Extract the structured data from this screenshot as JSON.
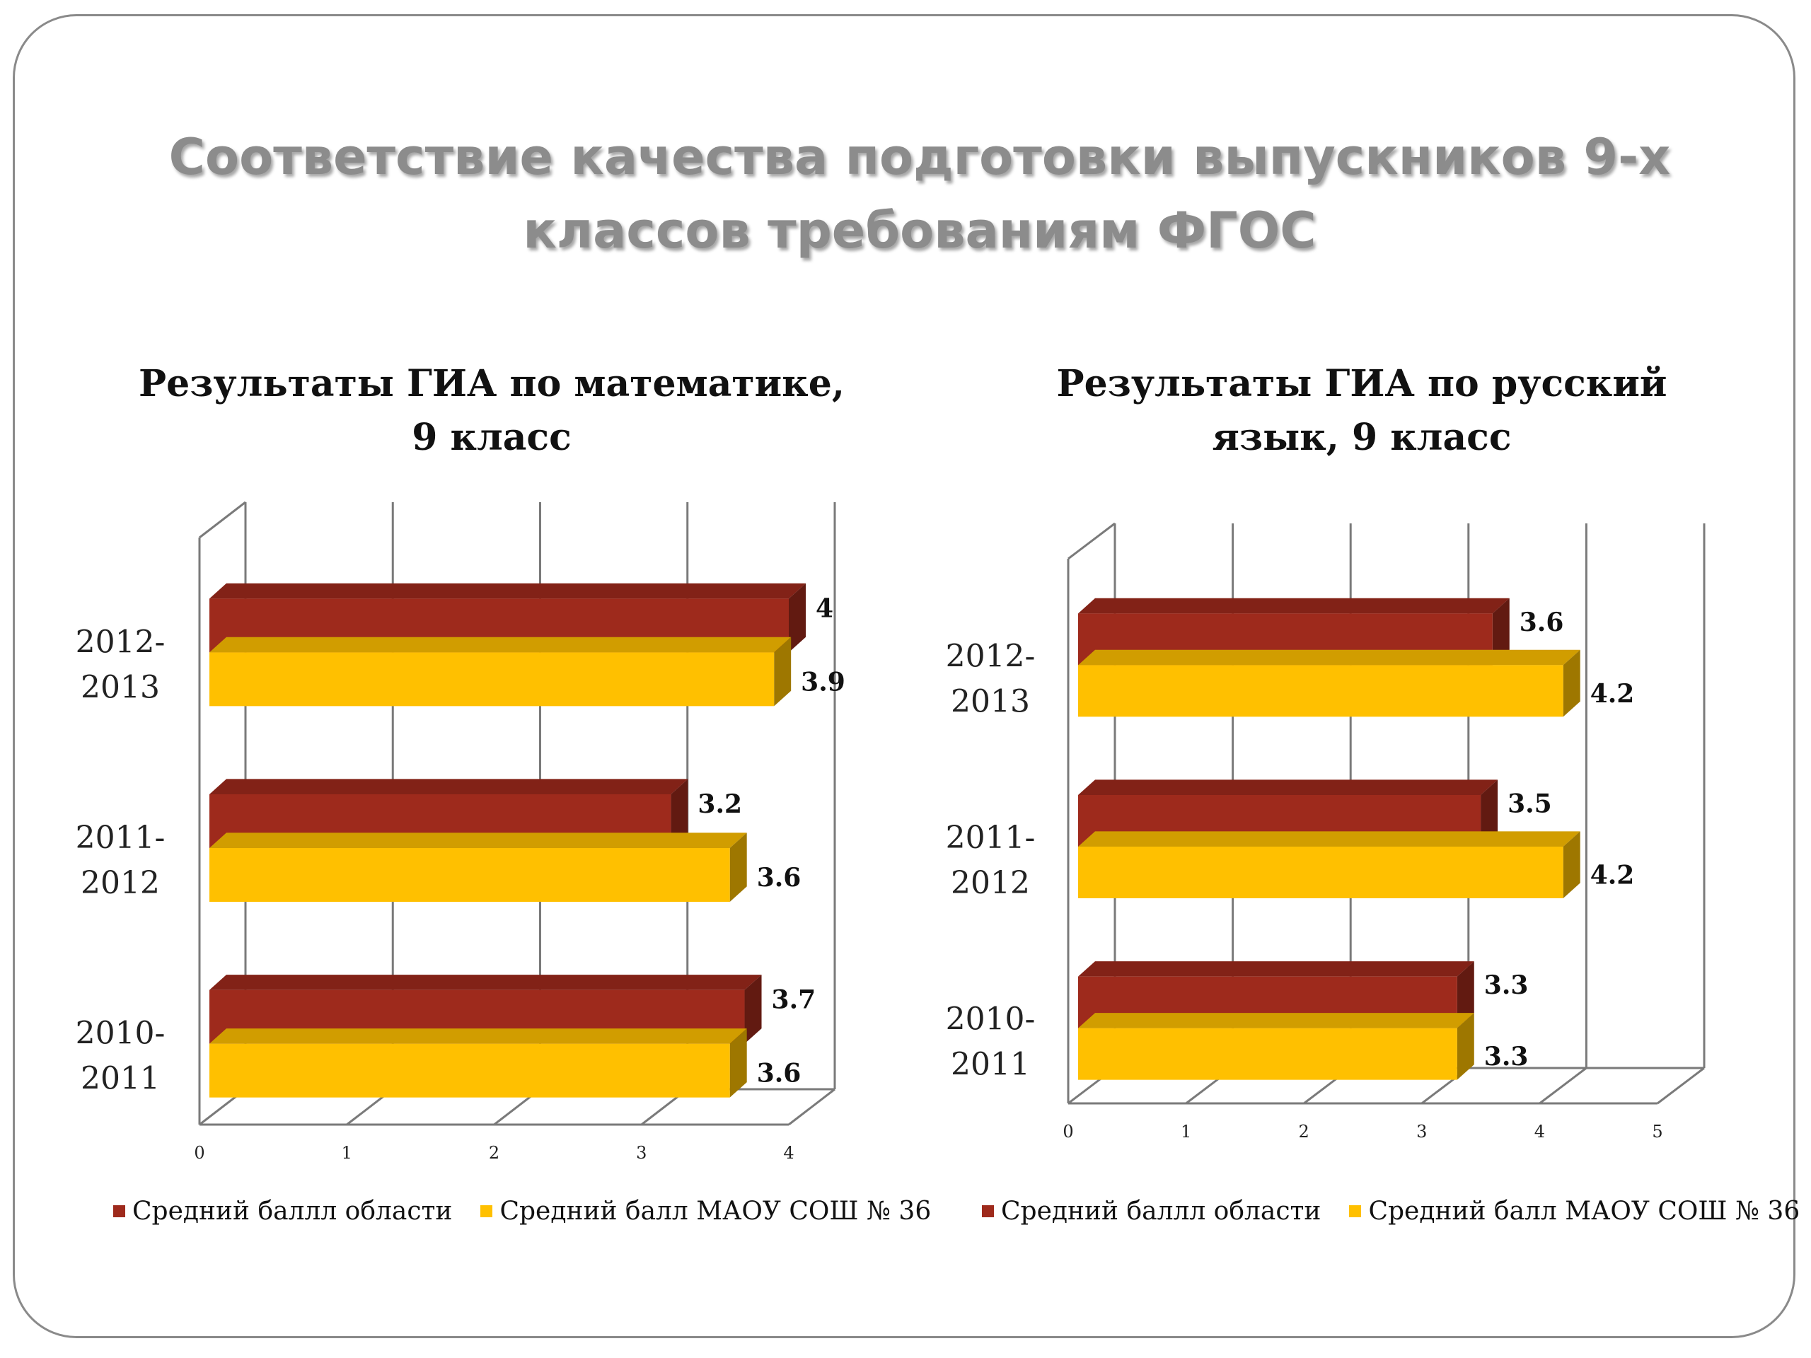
{
  "slide": {
    "title_line1": "Соответствие качества подготовки выпускников 9-х",
    "title_line2": "классов требованиям ФГОС"
  },
  "colors": {
    "region": "#9e2a1c",
    "school": "#ffc000",
    "axis": "#7a7a7a"
  },
  "chart_data": [
    {
      "type": "bar",
      "orientation": "horizontal",
      "style": "3d",
      "title_line1": "Результаты ГИА по математике,",
      "title_line2": "9 класс",
      "categories": [
        {
          "line1": "2012-",
          "line2": "2013"
        },
        {
          "line1": "2011-",
          "line2": "2012"
        },
        {
          "line1": "2010-",
          "line2": "2011"
        }
      ],
      "series": [
        {
          "name": "Средний баллл области",
          "values": [
            4,
            3.2,
            3.7
          ],
          "labels": [
            "4",
            "3.2",
            "3.7"
          ]
        },
        {
          "name": "Средний балл МАОУ СОШ № 36",
          "values": [
            3.9,
            3.6,
            3.6
          ],
          "labels": [
            "3.9",
            "3.6",
            "3.6"
          ]
        }
      ],
      "xlim": [
        0,
        4
      ],
      "ticks": [
        "0",
        "1",
        "2",
        "3",
        "4"
      ],
      "grid": true,
      "legend_position": "bottom"
    },
    {
      "type": "bar",
      "orientation": "horizontal",
      "style": "3d",
      "title_line1": "Результаты ГИА по русский",
      "title_line2": "язык, 9 класс",
      "categories": [
        {
          "line1": "2012-",
          "line2": "2013"
        },
        {
          "line1": "2011-",
          "line2": "2012"
        },
        {
          "line1": "2010-",
          "line2": "2011"
        }
      ],
      "series": [
        {
          "name": "Средний баллл области",
          "values": [
            3.6,
            3.5,
            3.3
          ],
          "labels": [
            "3.6",
            "3.5",
            "3.3"
          ]
        },
        {
          "name": "Средний балл МАОУ СОШ № 36",
          "values": [
            4.2,
            4.2,
            3.3
          ],
          "labels": [
            "4.2",
            "4.2",
            "3.3"
          ]
        }
      ],
      "xlim": [
        0,
        5
      ],
      "ticks": [
        "0",
        "1",
        "2",
        "3",
        "4",
        "5"
      ],
      "grid": true,
      "legend_position": "bottom"
    }
  ]
}
